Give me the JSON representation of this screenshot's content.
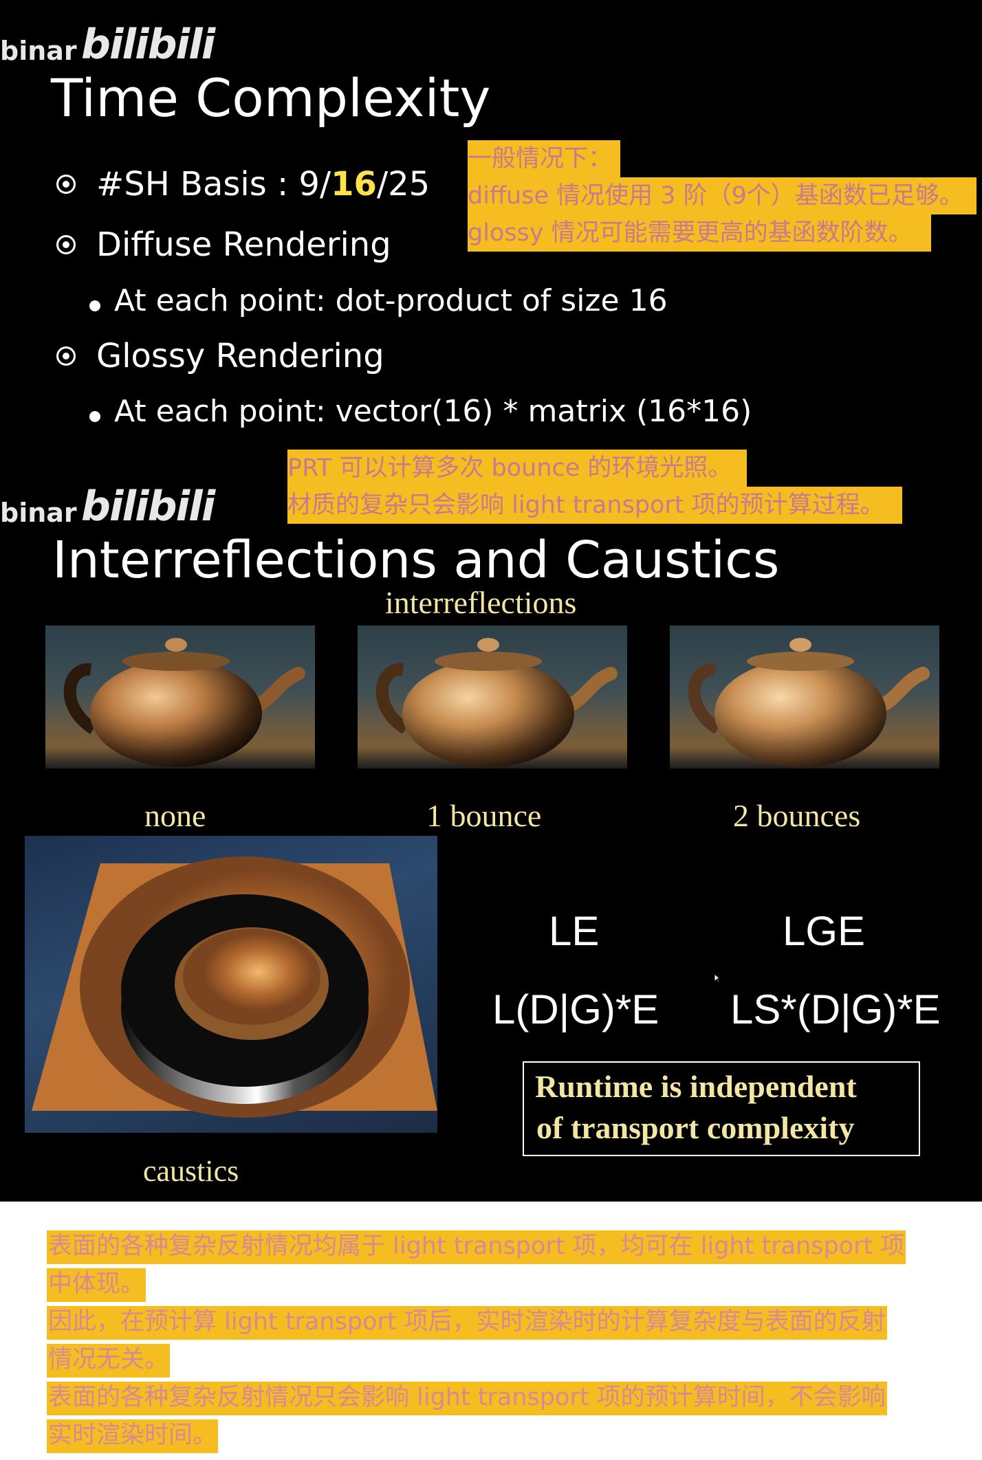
{
  "slide1": {
    "watermark": {
      "prefix": "binar",
      "brand": "bilibili"
    },
    "title": "Time Complexity",
    "bullets": {
      "sh_basis_prefix": "#SH Basis : 9/",
      "sh_basis_highlight": "16",
      "sh_basis_suffix": "/25",
      "diffuse": "Diffuse Rendering",
      "diffuse_sub": "At each point: dot-product of size 16",
      "glossy": "Glossy Rendering",
      "glossy_sub": "At each point:  vector(16) * matrix (16*16)"
    },
    "note": {
      "line1": "一般情况下：",
      "line2": "diffuse 情况使用 3 阶（9个）基函数已足够。",
      "line3": "glossy 情况可能需要更高的基函数阶数。"
    }
  },
  "slide2": {
    "watermark": {
      "prefix": "binar",
      "brand": "bilibili"
    },
    "note": {
      "line1": "PRT 可以计算多次 bounce 的环境光照。",
      "line2": "材质的复杂只会影响 light transport 项的预计算过程。"
    },
    "title": "Interreflections and Caustics",
    "interreflections_label": "interreflections",
    "captions": {
      "none": "none",
      "one": "1 bounce",
      "two": "2 bounces"
    },
    "caustics_label": "caustics",
    "formulas": {
      "le": "LE",
      "lge": "LGE",
      "ldge": "L(D|G)*E",
      "lsdge": "LS*(D|G)*E"
    },
    "box": {
      "line1": "Runtime is independent",
      "line2": "of  transport complexity"
    }
  },
  "bottom_note": {
    "line1": "表面的各种复杂反射情况均属于 light transport 项，均可在 light transport 项",
    "line2": "中体现。",
    "line3": "因此，在预计算 light transport 项后，实时渲染时的计算复杂度与表面的反射",
    "line4": "情况无关。",
    "line5": "表面的各种复杂反射情况只会影响 light transport 项的预计算时间，不会影响",
    "line6": "实时渲染时间。"
  }
}
